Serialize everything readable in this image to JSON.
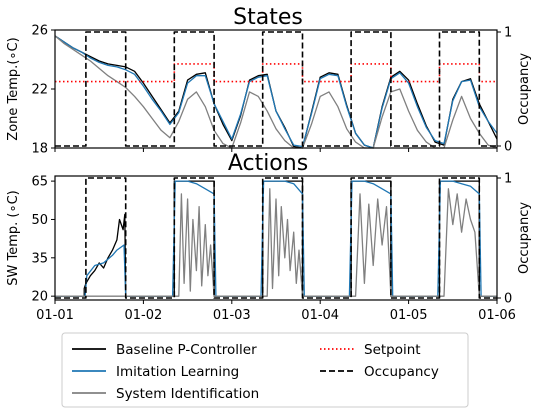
{
  "chart_data": [
    {
      "type": "line",
      "title": "States",
      "ylabel": "Zone Temp.(∘C)",
      "y2label": "Occupancy",
      "ylim": [
        18,
        26
      ],
      "yticks": [
        "26",
        "22",
        "18"
      ],
      "y2lim": [
        0,
        1
      ],
      "y2ticks": [
        "1",
        "0"
      ],
      "xlim": [
        0,
        5
      ],
      "series": [
        {
          "name": "Baseline P-Controller",
          "color": "#000000",
          "x": [
            0,
            0.1,
            0.2,
            0.3,
            0.4,
            0.5,
            0.6,
            0.7,
            0.8,
            0.9,
            1.0,
            1.1,
            1.2,
            1.3,
            1.4,
            1.5,
            1.6,
            1.7,
            1.8,
            1.9,
            2.0,
            2.1,
            2.2,
            2.3,
            2.4,
            2.5,
            2.6,
            2.7,
            2.8,
            2.9,
            3.0,
            3.1,
            3.2,
            3.3,
            3.4,
            3.5,
            3.6,
            3.7,
            3.8,
            3.9,
            4.0,
            4.1,
            4.2,
            4.3,
            4.4,
            4.5,
            4.6,
            4.7,
            4.8,
            4.9,
            5.0
          ],
          "y": [
            25.6,
            25.2,
            24.8,
            24.5,
            24.2,
            23.9,
            23.7,
            23.6,
            23.5,
            23.2,
            22.4,
            21.5,
            20.6,
            19.7,
            20.5,
            22.6,
            23.0,
            23.1,
            21.0,
            19.6,
            18.5,
            20.2,
            22.6,
            22.9,
            23.0,
            20.5,
            19.4,
            18.1,
            18.0,
            20.4,
            22.8,
            23.1,
            23.0,
            20.9,
            19.0,
            18.2,
            18.0,
            20.8,
            22.8,
            23.2,
            22.6,
            21.0,
            19.5,
            18.4,
            18.2,
            21.3,
            22.5,
            22.7,
            21.0,
            19.8,
            18.6
          ]
        },
        {
          "name": "Imitation Learning",
          "color": "#1f77b4",
          "x": [
            0,
            0.1,
            0.2,
            0.3,
            0.4,
            0.5,
            0.6,
            0.7,
            0.8,
            0.9,
            1.0,
            1.1,
            1.2,
            1.3,
            1.4,
            1.5,
            1.6,
            1.7,
            1.8,
            1.9,
            2.0,
            2.1,
            2.2,
            2.3,
            2.4,
            2.5,
            2.6,
            2.7,
            2.8,
            2.9,
            3.0,
            3.1,
            3.2,
            3.3,
            3.4,
            3.5,
            3.6,
            3.7,
            3.8,
            3.9,
            4.0,
            4.1,
            4.2,
            4.3,
            4.4,
            4.5,
            4.6,
            4.7,
            4.8,
            4.9,
            5.0
          ],
          "y": [
            25.6,
            25.2,
            24.8,
            24.5,
            24.1,
            23.8,
            23.6,
            23.5,
            23.3,
            23.0,
            22.2,
            21.3,
            20.5,
            19.6,
            20.4,
            22.4,
            22.9,
            22.9,
            21.0,
            19.8,
            18.6,
            20.3,
            22.5,
            22.8,
            22.9,
            20.5,
            19.3,
            18.2,
            18.1,
            20.3,
            22.7,
            23.0,
            22.9,
            20.8,
            19.0,
            18.2,
            18.0,
            20.7,
            22.7,
            23.1,
            22.4,
            20.8,
            19.4,
            18.5,
            18.3,
            21.2,
            22.5,
            22.6,
            20.8,
            19.8,
            19.0
          ]
        },
        {
          "name": "System Identification",
          "color": "#808080",
          "x": [
            0,
            0.1,
            0.2,
            0.3,
            0.4,
            0.5,
            0.6,
            0.7,
            0.8,
            0.9,
            1.0,
            1.1,
            1.2,
            1.3,
            1.4,
            1.5,
            1.6,
            1.7,
            1.8,
            1.9,
            2.0,
            2.1,
            2.2,
            2.3,
            2.4,
            2.5,
            2.6,
            2.7,
            2.8,
            2.9,
            3.0,
            3.1,
            3.2,
            3.3,
            3.4,
            3.5,
            3.6,
            3.7,
            3.8,
            3.9,
            4.0,
            4.1,
            4.2,
            4.3,
            4.4,
            4.5,
            4.6,
            4.7,
            4.8,
            4.9,
            5.0
          ],
          "y": [
            25.6,
            25.1,
            24.7,
            24.3,
            23.9,
            23.4,
            22.9,
            22.5,
            22.1,
            21.5,
            20.8,
            20.0,
            19.2,
            18.7,
            19.8,
            21.3,
            21.8,
            20.8,
            19.2,
            18.3,
            18.0,
            19.7,
            21.8,
            21.5,
            20.5,
            19.3,
            18.5,
            18.0,
            18.0,
            19.6,
            21.5,
            21.8,
            20.8,
            19.3,
            18.4,
            18.0,
            18.0,
            20.1,
            21.8,
            22.0,
            20.5,
            19.2,
            18.4,
            18.0,
            18.0,
            19.9,
            21.5,
            20.0,
            19.0,
            18.2,
            18.0
          ]
        },
        {
          "name": "Setpoint",
          "color": "#ff0000",
          "style": "dotted",
          "x": [
            0,
            1.35,
            1.35,
            1.8,
            1.8,
            2.35,
            2.35,
            2.8,
            2.8,
            3.35,
            3.35,
            3.8,
            3.8,
            4.35,
            4.35,
            4.8,
            4.8,
            5.0
          ],
          "y": [
            22.5,
            22.5,
            23.7,
            23.7,
            22.5,
            22.5,
            23.7,
            23.7,
            22.5,
            22.5,
            23.7,
            23.7,
            22.5,
            22.5,
            23.7,
            23.7,
            22.5,
            22.5
          ]
        },
        {
          "name": "Occupancy",
          "color": "#000000",
          "style": "dashed",
          "axis": "right",
          "x": [
            0,
            0.35,
            0.35,
            0.8,
            0.8,
            1.35,
            1.35,
            1.8,
            1.8,
            2.35,
            2.35,
            2.8,
            2.8,
            3.35,
            3.35,
            3.8,
            3.8,
            4.35,
            4.35,
            4.8,
            4.8,
            5.0
          ],
          "y": [
            0,
            0,
            1,
            1,
            0,
            0,
            1,
            1,
            0,
            0,
            1,
            1,
            0,
            0,
            1,
            1,
            0,
            0,
            1,
            1,
            0,
            0
          ]
        }
      ]
    },
    {
      "type": "line",
      "title": "Actions",
      "ylabel": "SW Temp. (∘C)",
      "y2label": "Occupancy",
      "ylim": [
        18.5,
        67
      ],
      "yticks": [
        "65",
        "50",
        "35",
        "20"
      ],
      "y2lim": [
        0,
        1
      ],
      "y2ticks": [
        "1",
        "0"
      ],
      "xlim": [
        0,
        5
      ],
      "xticks": [
        "01-01",
        "01-02",
        "01-03",
        "01-04",
        "01-05",
        "01-06"
      ],
      "series": [
        {
          "name": "Baseline P-Controller",
          "color": "#000000",
          "x": [
            0,
            0.33,
            0.33,
            0.35,
            0.4,
            0.45,
            0.5,
            0.55,
            0.6,
            0.65,
            0.7,
            0.73,
            0.77,
            0.79,
            0.8,
            1.35,
            1.35,
            1.8,
            1.8,
            2.35,
            2.35,
            2.8,
            2.8,
            3.35,
            3.35,
            3.8,
            3.8,
            4.35,
            4.35,
            4.8,
            4.8,
            5.0
          ],
          "y": [
            20,
            20,
            23,
            25,
            28,
            30,
            33,
            31,
            35,
            38,
            42,
            50,
            46,
            52,
            20,
            20,
            65,
            65,
            20,
            20,
            65,
            65,
            20,
            20,
            65,
            65,
            20,
            20,
            65,
            65,
            20,
            20
          ]
        },
        {
          "name": "Imitation Learning",
          "color": "#1f77b4",
          "x": [
            0,
            0.34,
            0.36,
            0.45,
            0.55,
            0.65,
            0.7,
            0.78,
            0.8,
            1.33,
            1.36,
            1.5,
            1.6,
            1.7,
            1.8,
            1.82,
            2.33,
            2.36,
            2.5,
            2.6,
            2.7,
            2.8,
            2.82,
            3.33,
            3.36,
            3.5,
            3.6,
            3.7,
            3.8,
            3.82,
            4.33,
            4.36,
            4.5,
            4.6,
            4.7,
            4.8,
            4.82,
            5.0
          ],
          "y": [
            20,
            20,
            28,
            32,
            33,
            36,
            38,
            40,
            20,
            20,
            65,
            65,
            64,
            62,
            60,
            20,
            20,
            65,
            65,
            65,
            64,
            60,
            20,
            20,
            65,
            65,
            64,
            62,
            60,
            20,
            20,
            65,
            65,
            64,
            63,
            60,
            20,
            20
          ]
        },
        {
          "name": "System Identification",
          "color": "#808080",
          "x": [
            0,
            1.4,
            1.43,
            1.46,
            1.5,
            1.53,
            1.56,
            1.6,
            1.63,
            1.66,
            1.7,
            1.73,
            1.76,
            1.8,
            2.4,
            2.43,
            2.46,
            2.5,
            2.53,
            2.56,
            2.6,
            2.63,
            2.66,
            2.7,
            2.73,
            2.76,
            2.8,
            3.4,
            3.45,
            3.5,
            3.55,
            3.6,
            3.65,
            3.7,
            3.75,
            3.8,
            4.4,
            4.45,
            4.5,
            4.55,
            4.6,
            4.65,
            4.7,
            4.75,
            4.8,
            5.0
          ],
          "y": [
            20,
            20,
            60,
            25,
            58,
            22,
            50,
            30,
            55,
            24,
            48,
            28,
            40,
            20,
            20,
            62,
            23,
            58,
            28,
            55,
            35,
            50,
            30,
            45,
            25,
            38,
            20,
            20,
            60,
            25,
            56,
            32,
            58,
            40,
            55,
            20,
            20,
            62,
            48,
            60,
            45,
            58,
            50,
            45,
            20,
            20
          ]
        },
        {
          "name": "Occupancy",
          "color": "#000000",
          "style": "dashed",
          "axis": "right",
          "x": [
            0,
            0.35,
            0.35,
            0.8,
            0.8,
            1.35,
            1.35,
            1.8,
            1.8,
            2.35,
            2.35,
            2.8,
            2.8,
            3.35,
            3.35,
            3.8,
            3.8,
            4.35,
            4.35,
            4.8,
            4.8,
            5.0
          ],
          "y": [
            0,
            0,
            1,
            1,
            0,
            0,
            1,
            1,
            0,
            0,
            1,
            1,
            0,
            0,
            1,
            1,
            0,
            0,
            1,
            1,
            0,
            0
          ]
        }
      ]
    }
  ],
  "legend": {
    "placement": "bottom",
    "entries": [
      "Baseline P-Controller",
      "Imitation Learning",
      "System Identification",
      "Setpoint",
      "Occupancy"
    ]
  }
}
